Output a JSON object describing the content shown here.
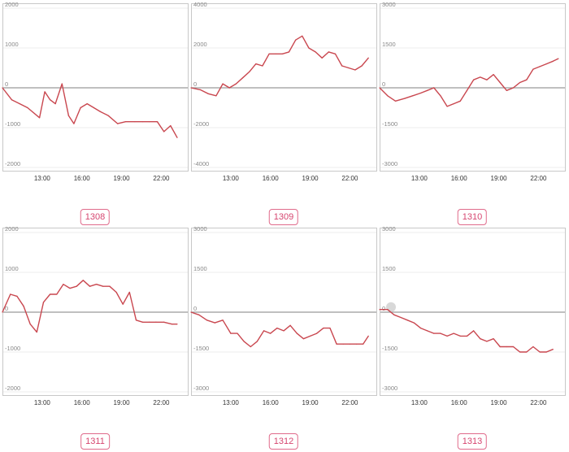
{
  "chart_data": [
    {
      "type": "line",
      "label": "1308",
      "ylim": [
        -2000,
        2000
      ],
      "yticks": [
        2000,
        1000,
        0,
        -1000,
        -2000
      ],
      "xlim": [
        10,
        24
      ],
      "xticks": [
        "13:00",
        "16:00",
        "19:00",
        "22:00"
      ],
      "xtick_values": [
        13,
        16,
        19,
        22
      ],
      "x": [
        10.0,
        10.7,
        11.3,
        11.9,
        12.8,
        13.2,
        13.6,
        14.0,
        14.5,
        15.0,
        15.4,
        15.9,
        16.4,
        16.9,
        17.4,
        18.0,
        18.7,
        19.3,
        20.0,
        20.6,
        21.1,
        21.7,
        22.2,
        22.7,
        23.2
      ],
      "values": [
        0,
        -300,
        -400,
        -500,
        -750,
        -100,
        -300,
        -400,
        100,
        -700,
        -900,
        -500,
        -400,
        -500,
        -600,
        -700,
        -900,
        -850,
        -850,
        -850,
        -850,
        -850,
        -1100,
        -950,
        -1250
      ],
      "grid": true
    },
    {
      "type": "line",
      "label": "1309",
      "ylim": [
        -4000,
        4000
      ],
      "yticks": [
        4000,
        2000,
        0,
        -2000,
        -4000
      ],
      "xlim": [
        10,
        24
      ],
      "xticks": [
        "13:00",
        "16:00",
        "19:00",
        "22:00"
      ],
      "xtick_values": [
        13,
        16,
        19,
        22
      ],
      "x": [
        10.0,
        10.7,
        11.3,
        11.9,
        12.4,
        12.9,
        13.4,
        13.9,
        14.4,
        14.9,
        15.4,
        15.9,
        16.4,
        16.9,
        17.4,
        17.9,
        18.4,
        18.9,
        19.4,
        19.9,
        20.4,
        20.9,
        21.4,
        21.9,
        22.4,
        22.9,
        23.4
      ],
      "values": [
        0,
        -100,
        -300,
        -400,
        200,
        0,
        200,
        500,
        800,
        1200,
        1100,
        1700,
        1700,
        1700,
        1800,
        2400,
        2600,
        2000,
        1800,
        1500,
        1800,
        1700,
        1100,
        1000,
        900,
        1100,
        1500
      ],
      "grid": true
    },
    {
      "type": "line",
      "label": "1310",
      "ylim": [
        -3000,
        3000
      ],
      "yticks": [
        3000,
        1500,
        0,
        -1500,
        -3000
      ],
      "xlim": [
        10,
        24
      ],
      "xticks": [
        "13:00",
        "16:00",
        "19:00",
        "22:00"
      ],
      "xtick_values": [
        13,
        16,
        19,
        22
      ],
      "x": [
        10.0,
        10.6,
        11.2,
        11.9,
        12.5,
        13.1,
        13.6,
        14.1,
        14.6,
        15.1,
        15.6,
        16.1,
        16.6,
        17.1,
        17.6,
        18.1,
        18.6,
        19.1,
        19.6,
        20.1,
        20.6,
        21.1,
        21.6,
        22.1,
        22.6,
        23.1,
        23.5
      ],
      "values": [
        0,
        -300,
        -500,
        -400,
        -300,
        -200,
        -100,
        0,
        -300,
        -700,
        -600,
        -500,
        -100,
        300,
        400,
        300,
        500,
        200,
        -100,
        0,
        200,
        300,
        700,
        800,
        900,
        1000,
        1100
      ],
      "grid": true
    },
    {
      "type": "line",
      "label": "1311",
      "ylim": [
        -2000,
        2000
      ],
      "yticks": [
        2000,
        1000,
        0,
        -1000,
        -2000
      ],
      "xlim": [
        10,
        24
      ],
      "xticks": [
        "13:00",
        "16:00",
        "19:00",
        "22:00"
      ],
      "xtick_values": [
        13,
        16,
        19,
        22
      ],
      "x": [
        10.0,
        10.6,
        11.1,
        11.6,
        12.1,
        12.6,
        13.1,
        13.6,
        14.1,
        14.6,
        15.1,
        15.6,
        16.1,
        16.6,
        17.1,
        17.6,
        18.1,
        18.6,
        19.1,
        19.6,
        20.1,
        20.6,
        21.1,
        21.6,
        22.2,
        22.8,
        23.2
      ],
      "values": [
        0,
        450,
        400,
        150,
        -300,
        -500,
        250,
        450,
        450,
        700,
        600,
        650,
        800,
        650,
        700,
        650,
        650,
        500,
        200,
        500,
        -200,
        -250,
        -250,
        -250,
        -250,
        -300,
        -300
      ],
      "grid": true
    },
    {
      "type": "line",
      "label": "1312",
      "ylim": [
        -3000,
        3000
      ],
      "yticks": [
        3000,
        1500,
        0,
        -1500,
        -3000
      ],
      "xlim": [
        10,
        24
      ],
      "xticks": [
        "13:00",
        "16:00",
        "19:00",
        "22:00"
      ],
      "xtick_values": [
        13,
        16,
        19,
        22
      ],
      "x": [
        10.0,
        10.6,
        11.2,
        11.8,
        12.4,
        13.0,
        13.5,
        14.0,
        14.5,
        15.0,
        15.5,
        16.0,
        16.5,
        17.0,
        17.5,
        18.0,
        18.5,
        19.0,
        19.5,
        20.0,
        20.5,
        21.0,
        21.5,
        22.0,
        22.5,
        23.0,
        23.4
      ],
      "values": [
        0,
        -100,
        -300,
        -400,
        -300,
        -800,
        -800,
        -1100,
        -1300,
        -1100,
        -700,
        -800,
        -600,
        -700,
        -500,
        -800,
        -1000,
        -900,
        -800,
        -600,
        -600,
        -1200,
        -1200,
        -1200,
        -1200,
        -1200,
        -900
      ],
      "grid": true
    },
    {
      "type": "line",
      "label": "1313",
      "ylim": [
        -3000,
        3000
      ],
      "yticks": [
        3000,
        1500,
        0,
        -1500,
        -3000
      ],
      "xlim": [
        10,
        24
      ],
      "xticks": [
        "13:00",
        "16:00",
        "19:00",
        "22:00"
      ],
      "xtick_values": [
        13,
        16,
        19,
        22
      ],
      "x": [
        10.0,
        10.6,
        11.1,
        11.6,
        12.1,
        12.6,
        13.1,
        13.6,
        14.1,
        14.6,
        15.1,
        15.6,
        16.1,
        16.6,
        17.1,
        17.6,
        18.1,
        18.6,
        19.1,
        19.6,
        20.1,
        20.6,
        21.1,
        21.6,
        22.1,
        22.6,
        23.1
      ],
      "values": [
        100,
        100,
        -100,
        -200,
        -300,
        -400,
        -600,
        -700,
        -800,
        -800,
        -900,
        -800,
        -900,
        -900,
        -700,
        -1000,
        -1100,
        -1000,
        -1300,
        -1300,
        -1300,
        -1500,
        -1500,
        -1300,
        -1500,
        -1500,
        -1400
      ],
      "grid": true
    }
  ]
}
